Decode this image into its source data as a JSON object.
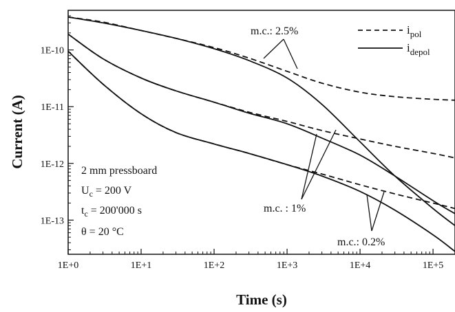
{
  "chart_data": {
    "type": "line",
    "xlabel": "Time (s)",
    "ylabel": "Current (A)",
    "xscale": "log",
    "yscale": "log",
    "xlim": [
      1,
      200000
    ],
    "ylim": [
      2.5e-14,
      5e-10
    ],
    "xticks": [
      {
        "value": 1,
        "label": "1E+0"
      },
      {
        "value": 10,
        "label": "1E+1"
      },
      {
        "value": 100,
        "label": "1E+2"
      },
      {
        "value": 1000,
        "label": "1E+3"
      },
      {
        "value": 10000,
        "label": "1E+4"
      },
      {
        "value": 100000,
        "label": "1E+5"
      }
    ],
    "yticks": [
      {
        "value": 1e-13,
        "label": "1E-13"
      },
      {
        "value": 1e-12,
        "label": "1E-12"
      },
      {
        "value": 1e-11,
        "label": "1E-11"
      },
      {
        "value": 1e-10,
        "label": "1E-10"
      }
    ],
    "grid": false,
    "legend": {
      "placement": "top-right",
      "entries": [
        {
          "main": "i",
          "sub": "pol",
          "style": "dashed"
        },
        {
          "main": "i",
          "sub": "depol",
          "style": "solid"
        }
      ]
    },
    "info_box": {
      "line1": "2 mm pressboard",
      "line2_main": "U",
      "line2_sub": "c",
      "line2_rest": " = 200 V",
      "line3_main": "t",
      "line3_sub": "c",
      "line3_rest": " = 200'000 s",
      "line4": "θ = 20 °C"
    },
    "annotations": [
      {
        "text": "m.c.: 2.5%"
      },
      {
        "text": "m.c. : 1%"
      },
      {
        "text": "m.c.: 0.2%"
      }
    ],
    "series": [
      {
        "style": "dashed",
        "group": 0,
        "x": [
          1,
          3,
          10,
          30,
          100,
          300,
          1000,
          3000,
          10000,
          30000,
          100000,
          200000
        ],
        "y": [
          3.8e-10,
          3.1e-10,
          2.2e-10,
          1.6e-10,
          1.1e-10,
          7.2e-11,
          4.2e-11,
          2.6e-11,
          1.8e-11,
          1.5e-11,
          1.35e-11,
          1.3e-11
        ]
      },
      {
        "style": "solid",
        "group": 0,
        "x": [
          1,
          3,
          10,
          30,
          100,
          300,
          1000,
          3000,
          10000,
          30000,
          100000,
          200000
        ],
        "y": [
          3.8e-10,
          3e-10,
          2.2e-10,
          1.6e-10,
          1.05e-10,
          6.5e-11,
          3.2e-11,
          1.1e-11,
          2.4e-12,
          6e-13,
          1.6e-13,
          8e-14
        ]
      },
      {
        "style": "dashed",
        "group": 1,
        "x": [
          1,
          3,
          10,
          30,
          100,
          300,
          1000,
          3000,
          10000,
          30000,
          100000,
          200000
        ],
        "y": [
          1.9e-10,
          7e-11,
          3.2e-11,
          1.9e-11,
          1.2e-11,
          8e-12,
          5.5e-12,
          3.8e-12,
          2.7e-12,
          2e-12,
          1.5e-12,
          1.25e-12
        ]
      },
      {
        "style": "solid",
        "group": 1,
        "x": [
          1,
          3,
          10,
          30,
          100,
          300,
          1000,
          3000,
          10000,
          30000,
          100000,
          200000
        ],
        "y": [
          1.9e-10,
          7e-11,
          3.2e-11,
          1.9e-11,
          1.2e-11,
          7.7e-12,
          5e-12,
          2.8e-12,
          1.4e-12,
          6e-13,
          2.2e-13,
          1.3e-13
        ]
      },
      {
        "style": "dashed",
        "group": 2,
        "x": [
          1,
          3,
          10,
          30,
          100,
          300,
          1000,
          3000,
          10000,
          30000,
          100000,
          200000
        ],
        "y": [
          9.5e-11,
          2.5e-11,
          7.5e-12,
          3.5e-12,
          2.2e-12,
          1.5e-12,
          9.5e-13,
          6.5e-13,
          4.2e-13,
          2.9e-13,
          2e-13,
          1.6e-13
        ]
      },
      {
        "style": "solid",
        "group": 2,
        "x": [
          1,
          3,
          10,
          30,
          100,
          300,
          1000,
          3000,
          10000,
          30000,
          100000,
          200000
        ],
        "y": [
          9.5e-11,
          2.5e-11,
          7.5e-12,
          3.5e-12,
          2.2e-12,
          1.5e-12,
          9.5e-13,
          6e-13,
          3.2e-13,
          1.5e-13,
          5.5e-14,
          2.8e-14
        ]
      }
    ]
  }
}
